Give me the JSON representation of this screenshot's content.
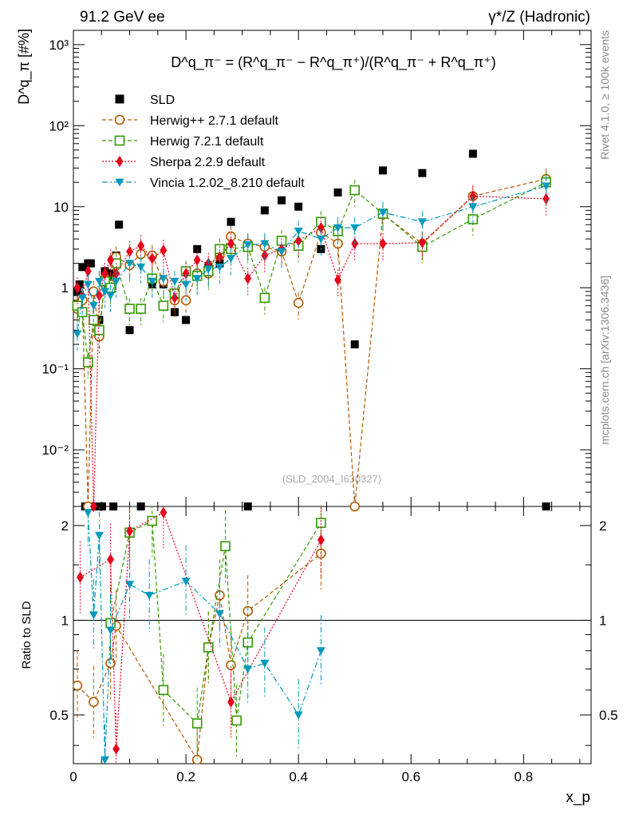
{
  "header": {
    "left": "91.2 GeV ee",
    "right": "γ*/Z (Hadronic)"
  },
  "side_labels": {
    "rivet": "Rivet 4.1.0, ≥ 100k events",
    "mcplots": "mcplots.cern.ch [arXiv:1306.3436]"
  },
  "formula": {
    "text": "D^q_π⁻ = (R^q_π⁻ − R^q_π⁺)/(R^q_π⁻ + R^q_π⁺)"
  },
  "watermark": "(SLD_2004_I630327)",
  "chart_data": {
    "type": "scatter",
    "title": "D^q_π = (R^q_π⁻ - R^q_π⁺)/(R^q_π⁻ + R^q_π⁺)",
    "xlabel": "x_p",
    "ylabel": "D^q_π [#%]",
    "ratio_ylabel": "Ratio to SLD",
    "xlim": [
      0,
      0.92
    ],
    "ylim": [
      0.002,
      1500
    ],
    "yscale": "log",
    "ratio_ylim": [
      0.35,
      2.3
    ],
    "x_ticks": [
      0,
      0.2,
      0.4,
      0.6,
      0.8
    ],
    "x_tick_labels": [
      "0",
      "0.2",
      "0.4",
      "0.6",
      "0.8"
    ],
    "y_ticks": [
      0.01,
      0.1,
      1,
      10,
      100,
      1000
    ],
    "y_tick_labels": [
      "10⁻²",
      "10⁻¹",
      "1",
      "10",
      "10²",
      "10³"
    ],
    "ratio_ticks": [
      0.5,
      1,
      2
    ],
    "ratio_tick_labels": [
      "0.5",
      "1",
      "2"
    ],
    "legend": [
      "SLD",
      "Herwig++ 2.7.1 default",
      "Herwig 7.2.1 default",
      "Sherpa 2.2.9 default",
      "Vincia 1.2.02_8.210 default"
    ],
    "series": [
      {
        "name": "SLD",
        "color": "#000000",
        "marker": "square",
        "line": "none",
        "x": [
          0.007,
          0.011,
          0.016,
          0.021,
          0.026,
          0.031,
          0.036,
          0.041,
          0.046,
          0.051,
          0.056,
          0.061,
          0.066,
          0.071,
          0.076,
          0.081,
          0.1,
          0.12,
          0.14,
          0.16,
          0.18,
          0.2,
          0.22,
          0.24,
          0.26,
          0.28,
          0.31,
          0.34,
          0.37,
          0.4,
          0.44,
          0.47,
          0.5,
          0.55,
          0.62,
          0.71,
          0.84
        ],
        "y": [
          0.9,
          1.1,
          1.8,
          0.002,
          2.0,
          2.0,
          0.002,
          0.002,
          0.4,
          0.002,
          1.6,
          1.2,
          1.5,
          0.002,
          2.5,
          6.0,
          0.3,
          0.002,
          1.1,
          1.1,
          0.5,
          0.4,
          3.0,
          1.8,
          2.0,
          6.5,
          0.002,
          9.0,
          12.0,
          10.0,
          3.0,
          15.0,
          0.2,
          28.0,
          26.0,
          45.0,
          0.002
        ]
      },
      {
        "name": "Herwig++ 2.7.1 default",
        "color": "#b35900",
        "marker": "circle",
        "line": "dashed",
        "x": [
          0.007,
          0.016,
          0.026,
          0.036,
          0.046,
          0.056,
          0.066,
          0.076,
          0.1,
          0.12,
          0.14,
          0.16,
          0.18,
          0.2,
          0.22,
          0.24,
          0.26,
          0.28,
          0.31,
          0.34,
          0.37,
          0.4,
          0.44,
          0.47,
          0.5,
          0.55,
          0.62,
          0.71,
          0.84
        ],
        "y": [
          0.55,
          0.7,
          0.002,
          0.9,
          0.25,
          1.3,
          1.1,
          2.4,
          1.9,
          2.6,
          2.5,
          1.2,
          0.7,
          0.7,
          1.5,
          1.5,
          2.5,
          4.3,
          3.5,
          3.2,
          2.8,
          0.65,
          4.8,
          3.5,
          0.002,
          8.0,
          3.5,
          13.5,
          22.0
        ]
      },
      {
        "name": "Herwig 7.2.1 default",
        "color": "#339900",
        "marker": "open-square",
        "line": "dashed",
        "x": [
          0.007,
          0.016,
          0.026,
          0.036,
          0.046,
          0.056,
          0.066,
          0.076,
          0.1,
          0.12,
          0.14,
          0.16,
          0.18,
          0.2,
          0.22,
          0.24,
          0.26,
          0.28,
          0.31,
          0.34,
          0.37,
          0.4,
          0.44,
          0.47,
          0.5,
          0.55,
          0.62,
          0.71,
          0.84
        ],
        "y": [
          0.6,
          0.5,
          0.12,
          0.4,
          0.3,
          1.2,
          1.0,
          2.0,
          0.55,
          0.55,
          1.3,
          0.6,
          0.85,
          1.6,
          1.4,
          1.6,
          3.0,
          3.0,
          3.2,
          0.75,
          3.8,
          3.3,
          6.5,
          5.0,
          16.0,
          8.2,
          3.2,
          7.0,
          20.0
        ]
      },
      {
        "name": "Sherpa 2.2.9 default",
        "color": "#e6001a",
        "marker": "diamond",
        "line": "dotted",
        "x": [
          0.007,
          0.016,
          0.026,
          0.036,
          0.046,
          0.056,
          0.066,
          0.076,
          0.1,
          0.12,
          0.14,
          0.16,
          0.18,
          0.2,
          0.22,
          0.24,
          0.26,
          0.28,
          0.31,
          0.34,
          0.37,
          0.4,
          0.44,
          0.47,
          0.5,
          0.55,
          0.62,
          0.71,
          0.84
        ],
        "y": [
          1.0,
          0.8,
          1.6,
          0.002,
          0.8,
          1.5,
          2.2,
          1.5,
          2.8,
          3.3,
          2.3,
          2.9,
          0.75,
          1.5,
          2.2,
          2.0,
          2.4,
          3.5,
          1.3,
          2.5,
          3.0,
          3.8,
          5.5,
          1.25,
          3.5,
          3.5,
          3.6,
          13.5,
          12.5
        ]
      },
      {
        "name": "Vincia 1.2.02_8.210 default",
        "color": "#0099bb",
        "marker": "triangle-down",
        "line": "dashdot",
        "x": [
          0.007,
          0.016,
          0.026,
          0.036,
          0.046,
          0.056,
          0.066,
          0.076,
          0.1,
          0.12,
          0.14,
          0.16,
          0.18,
          0.2,
          0.22,
          0.24,
          0.26,
          0.28,
          0.31,
          0.34,
          0.37,
          0.4,
          0.44,
          0.47,
          0.5,
          0.55,
          0.62,
          0.71,
          0.84
        ],
        "y": [
          0.27,
          0.75,
          1.1,
          0.6,
          1.2,
          0.9,
          0.8,
          1.2,
          2.0,
          1.8,
          1.2,
          1.3,
          1.2,
          1.1,
          1.3,
          1.7,
          1.8,
          2.3,
          3.4,
          3.5,
          2.8,
          5.0,
          4.0,
          5.5,
          5.5,
          8.5,
          6.5,
          10.0,
          18.0
        ]
      }
    ],
    "ratio_series": [
      {
        "name": "Herwig++ 2.7.1 default",
        "x": [
          0.007,
          0.036,
          0.066,
          0.076,
          0.22,
          0.24,
          0.26,
          0.28,
          0.31,
          0.44
        ],
        "y": [
          0.62,
          0.55,
          0.73,
          0.96,
          0.36,
          0.82,
          1.2,
          0.72,
          1.07,
          1.63
        ]
      },
      {
        "name": "Herwig 7.2.1 default",
        "x": [
          0.066,
          0.1,
          0.14,
          0.16,
          0.22,
          0.24,
          0.27,
          0.29,
          0.31,
          0.44
        ],
        "y": [
          0.98,
          1.9,
          2.07,
          0.6,
          0.47,
          0.82,
          1.72,
          0.48,
          0.85,
          2.04
        ]
      },
      {
        "name": "Sherpa 2.2.9 default",
        "x": [
          0.012,
          0.066,
          0.076,
          0.1,
          0.16,
          0.28,
          0.44
        ],
        "y": [
          1.37,
          1.56,
          0.39,
          1.92,
          2.2,
          0.55,
          1.8
        ]
      },
      {
        "name": "Vincia 1.2.02_8.210 default",
        "x": [
          0.026,
          0.036,
          0.046,
          0.056,
          0.066,
          0.1,
          0.135,
          0.2,
          0.26,
          0.31,
          0.34,
          0.4,
          0.44
        ],
        "y": [
          2.2,
          1.04,
          1.86,
          0.36,
          0.93,
          1.3,
          1.2,
          1.33,
          1.05,
          0.7,
          0.73,
          0.5,
          0.8
        ]
      }
    ]
  }
}
